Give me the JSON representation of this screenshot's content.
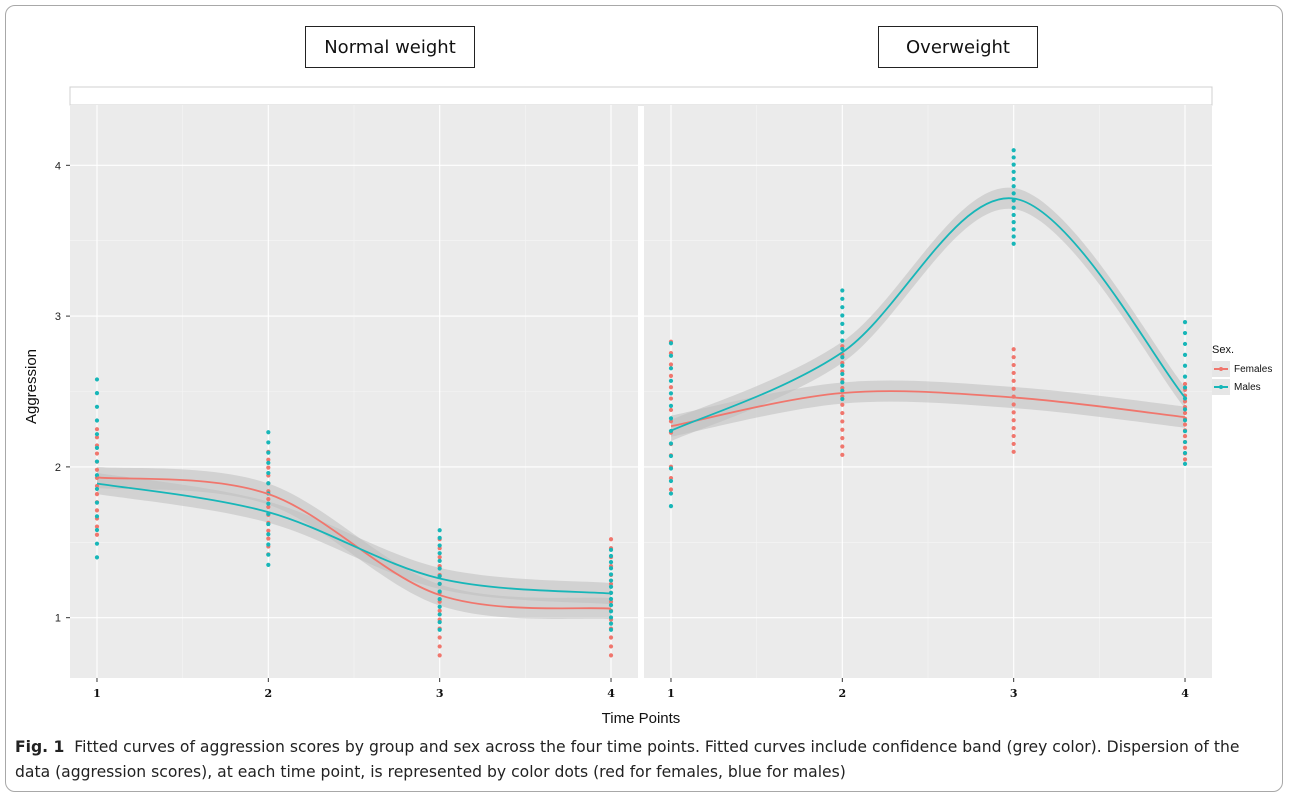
{
  "figure": {
    "caption_label": "Fig. 1",
    "caption_text": "Fitted curves of aggression scores by group and sex across the four time points. Fitted curves include confidence band (grey color). Dispersion of the data (aggression scores), at each time point, is represented by color dots (red for females, blue for males)"
  },
  "colors": {
    "females": "#f0766d",
    "males": "#17b6b8",
    "panel_bg": "#ebebeb",
    "grid": "#ffffff",
    "band": "#bdbdbd"
  },
  "chart_data": {
    "type": "line",
    "xlabel": "Time Points",
    "ylabel": "Aggression",
    "x_ticks": [
      "1",
      "2",
      "3",
      "4"
    ],
    "y_ticks": [
      "1",
      "2",
      "3",
      "4"
    ],
    "ylim": [
      0.6,
      4.4
    ],
    "grid": true,
    "legend": {
      "title": "Sex.",
      "position": "right",
      "entries": [
        "Females",
        "Males"
      ]
    },
    "panels": [
      {
        "name": "Normal weight",
        "series": [
          {
            "name": "Females",
            "x": [
              1,
              2,
              3,
              4
            ],
            "values": [
              1.93,
              1.82,
              1.15,
              1.06
            ],
            "points": [
              [
                1.55,
                2.25
              ],
              [
                1.42,
                2.1
              ],
              [
                0.75,
                1.52
              ],
              [
                0.75,
                1.52
              ]
            ]
          },
          {
            "name": "Males",
            "x": [
              1,
              2,
              3,
              4
            ],
            "values": [
              1.89,
              1.7,
              1.26,
              1.16
            ],
            "points": [
              [
                1.4,
                2.58
              ],
              [
                1.35,
                2.23
              ],
              [
                0.92,
                1.58
              ],
              [
                0.92,
                1.45
              ]
            ]
          }
        ]
      },
      {
        "name": "Overweight",
        "series": [
          {
            "name": "Females",
            "x": [
              1,
              2,
              3,
              4
            ],
            "values": [
              2.27,
              2.49,
              2.46,
              2.33
            ],
            "points": [
              [
                1.85,
                2.83
              ],
              [
                2.08,
                2.8
              ],
              [
                2.1,
                2.78
              ],
              [
                2.05,
                2.55
              ]
            ]
          },
          {
            "name": "Males",
            "x": [
              1,
              2,
              3,
              4
            ],
            "values": [
              2.24,
              2.76,
              3.78,
              2.46
            ],
            "points": [
              [
                1.74,
                2.82
              ],
              [
                2.45,
                3.17
              ],
              [
                3.48,
                4.1
              ],
              [
                2.02,
                2.96
              ]
            ]
          }
        ]
      }
    ]
  }
}
